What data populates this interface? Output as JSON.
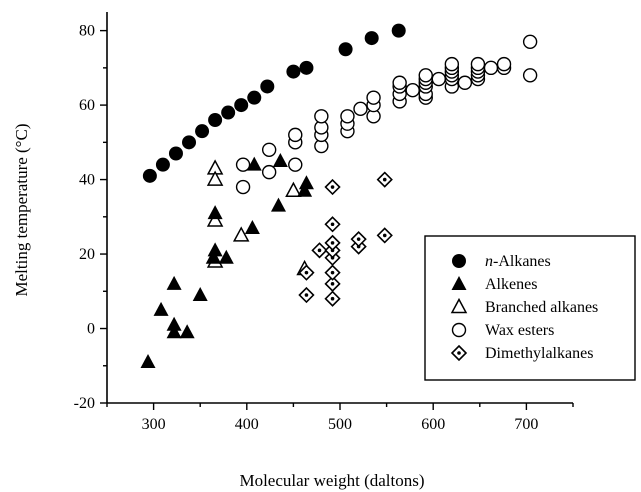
{
  "chart_data": {
    "type": "scatter",
    "xlabel": "Molecular weight (daltons)",
    "ylabel": "Melting temperature (°C)",
    "xlim": [
      250,
      750
    ],
    "ylim": [
      -20,
      85
    ],
    "xticks": [
      300,
      400,
      500,
      600,
      700
    ],
    "yticks": [
      -20,
      0,
      20,
      40,
      60,
      80
    ],
    "grid": false,
    "legend_position": "bottom-right",
    "series": [
      {
        "name": "n-Alkanes",
        "name_prefix": "n",
        "name_suffix": "-Alkanes",
        "marker": "filled-circle",
        "points": [
          [
            296,
            41
          ],
          [
            310,
            44
          ],
          [
            324,
            47
          ],
          [
            338,
            50
          ],
          [
            352,
            53
          ],
          [
            366,
            56
          ],
          [
            380,
            58
          ],
          [
            394,
            60
          ],
          [
            408,
            62
          ],
          [
            422,
            65
          ],
          [
            450,
            69
          ],
          [
            464,
            70
          ],
          [
            506,
            75
          ],
          [
            534,
            78
          ],
          [
            563,
            80
          ]
        ]
      },
      {
        "name": "Alkenes",
        "marker": "filled-triangle",
        "points": [
          [
            294,
            -9
          ],
          [
            308,
            5
          ],
          [
            322,
            12
          ],
          [
            322,
            1
          ],
          [
            322,
            -1
          ],
          [
            336,
            -1
          ],
          [
            350,
            9
          ],
          [
            364,
            19
          ],
          [
            366,
            21
          ],
          [
            366,
            31
          ],
          [
            378,
            19
          ],
          [
            406,
            27
          ],
          [
            408,
            44
          ],
          [
            434,
            33
          ],
          [
            436,
            45
          ],
          [
            462,
            37
          ],
          [
            464,
            39
          ]
        ]
      },
      {
        "name": "Branched alkanes",
        "marker": "open-triangle",
        "points": [
          [
            366,
            43
          ],
          [
            366,
            40
          ],
          [
            366,
            29
          ],
          [
            366,
            18
          ],
          [
            394,
            25
          ],
          [
            450,
            37
          ],
          [
            462,
            16
          ]
        ]
      },
      {
        "name": "Wax esters",
        "marker": "open-circle",
        "points": [
          [
            396,
            38
          ],
          [
            396,
            44
          ],
          [
            424,
            42
          ],
          [
            424,
            48
          ],
          [
            452,
            44
          ],
          [
            452,
            50
          ],
          [
            452,
            52
          ],
          [
            480,
            49
          ],
          [
            480,
            52
          ],
          [
            480,
            54
          ],
          [
            480,
            57
          ],
          [
            508,
            53
          ],
          [
            508,
            55
          ],
          [
            508,
            57
          ],
          [
            522,
            59
          ],
          [
            536,
            57
          ],
          [
            536,
            60
          ],
          [
            536,
            62
          ],
          [
            564,
            61
          ],
          [
            564,
            63
          ],
          [
            564,
            65
          ],
          [
            564,
            66
          ],
          [
            578,
            64
          ],
          [
            592,
            62
          ],
          [
            592,
            63
          ],
          [
            592,
            65
          ],
          [
            592,
            66
          ],
          [
            592,
            67
          ],
          [
            592,
            68
          ],
          [
            606,
            67
          ],
          [
            620,
            65
          ],
          [
            620,
            67
          ],
          [
            620,
            68
          ],
          [
            620,
            69
          ],
          [
            620,
            70
          ],
          [
            620,
            71
          ],
          [
            634,
            66
          ],
          [
            648,
            67
          ],
          [
            648,
            68
          ],
          [
            648,
            69
          ],
          [
            648,
            70
          ],
          [
            648,
            71
          ],
          [
            662,
            70
          ],
          [
            676,
            70
          ],
          [
            676,
            71
          ],
          [
            704,
            68
          ],
          [
            704,
            77
          ]
        ]
      },
      {
        "name": "Dimethylalkanes",
        "marker": "open-diamond-dot",
        "points": [
          [
            464,
            9
          ],
          [
            464,
            15
          ],
          [
            478,
            21
          ],
          [
            492,
            8
          ],
          [
            492,
            12
          ],
          [
            492,
            15
          ],
          [
            492,
            19
          ],
          [
            492,
            21
          ],
          [
            492,
            23
          ],
          [
            492,
            28
          ],
          [
            492,
            38
          ],
          [
            520,
            22
          ],
          [
            520,
            24
          ],
          [
            548,
            25
          ],
          [
            548,
            40
          ]
        ]
      }
    ]
  }
}
